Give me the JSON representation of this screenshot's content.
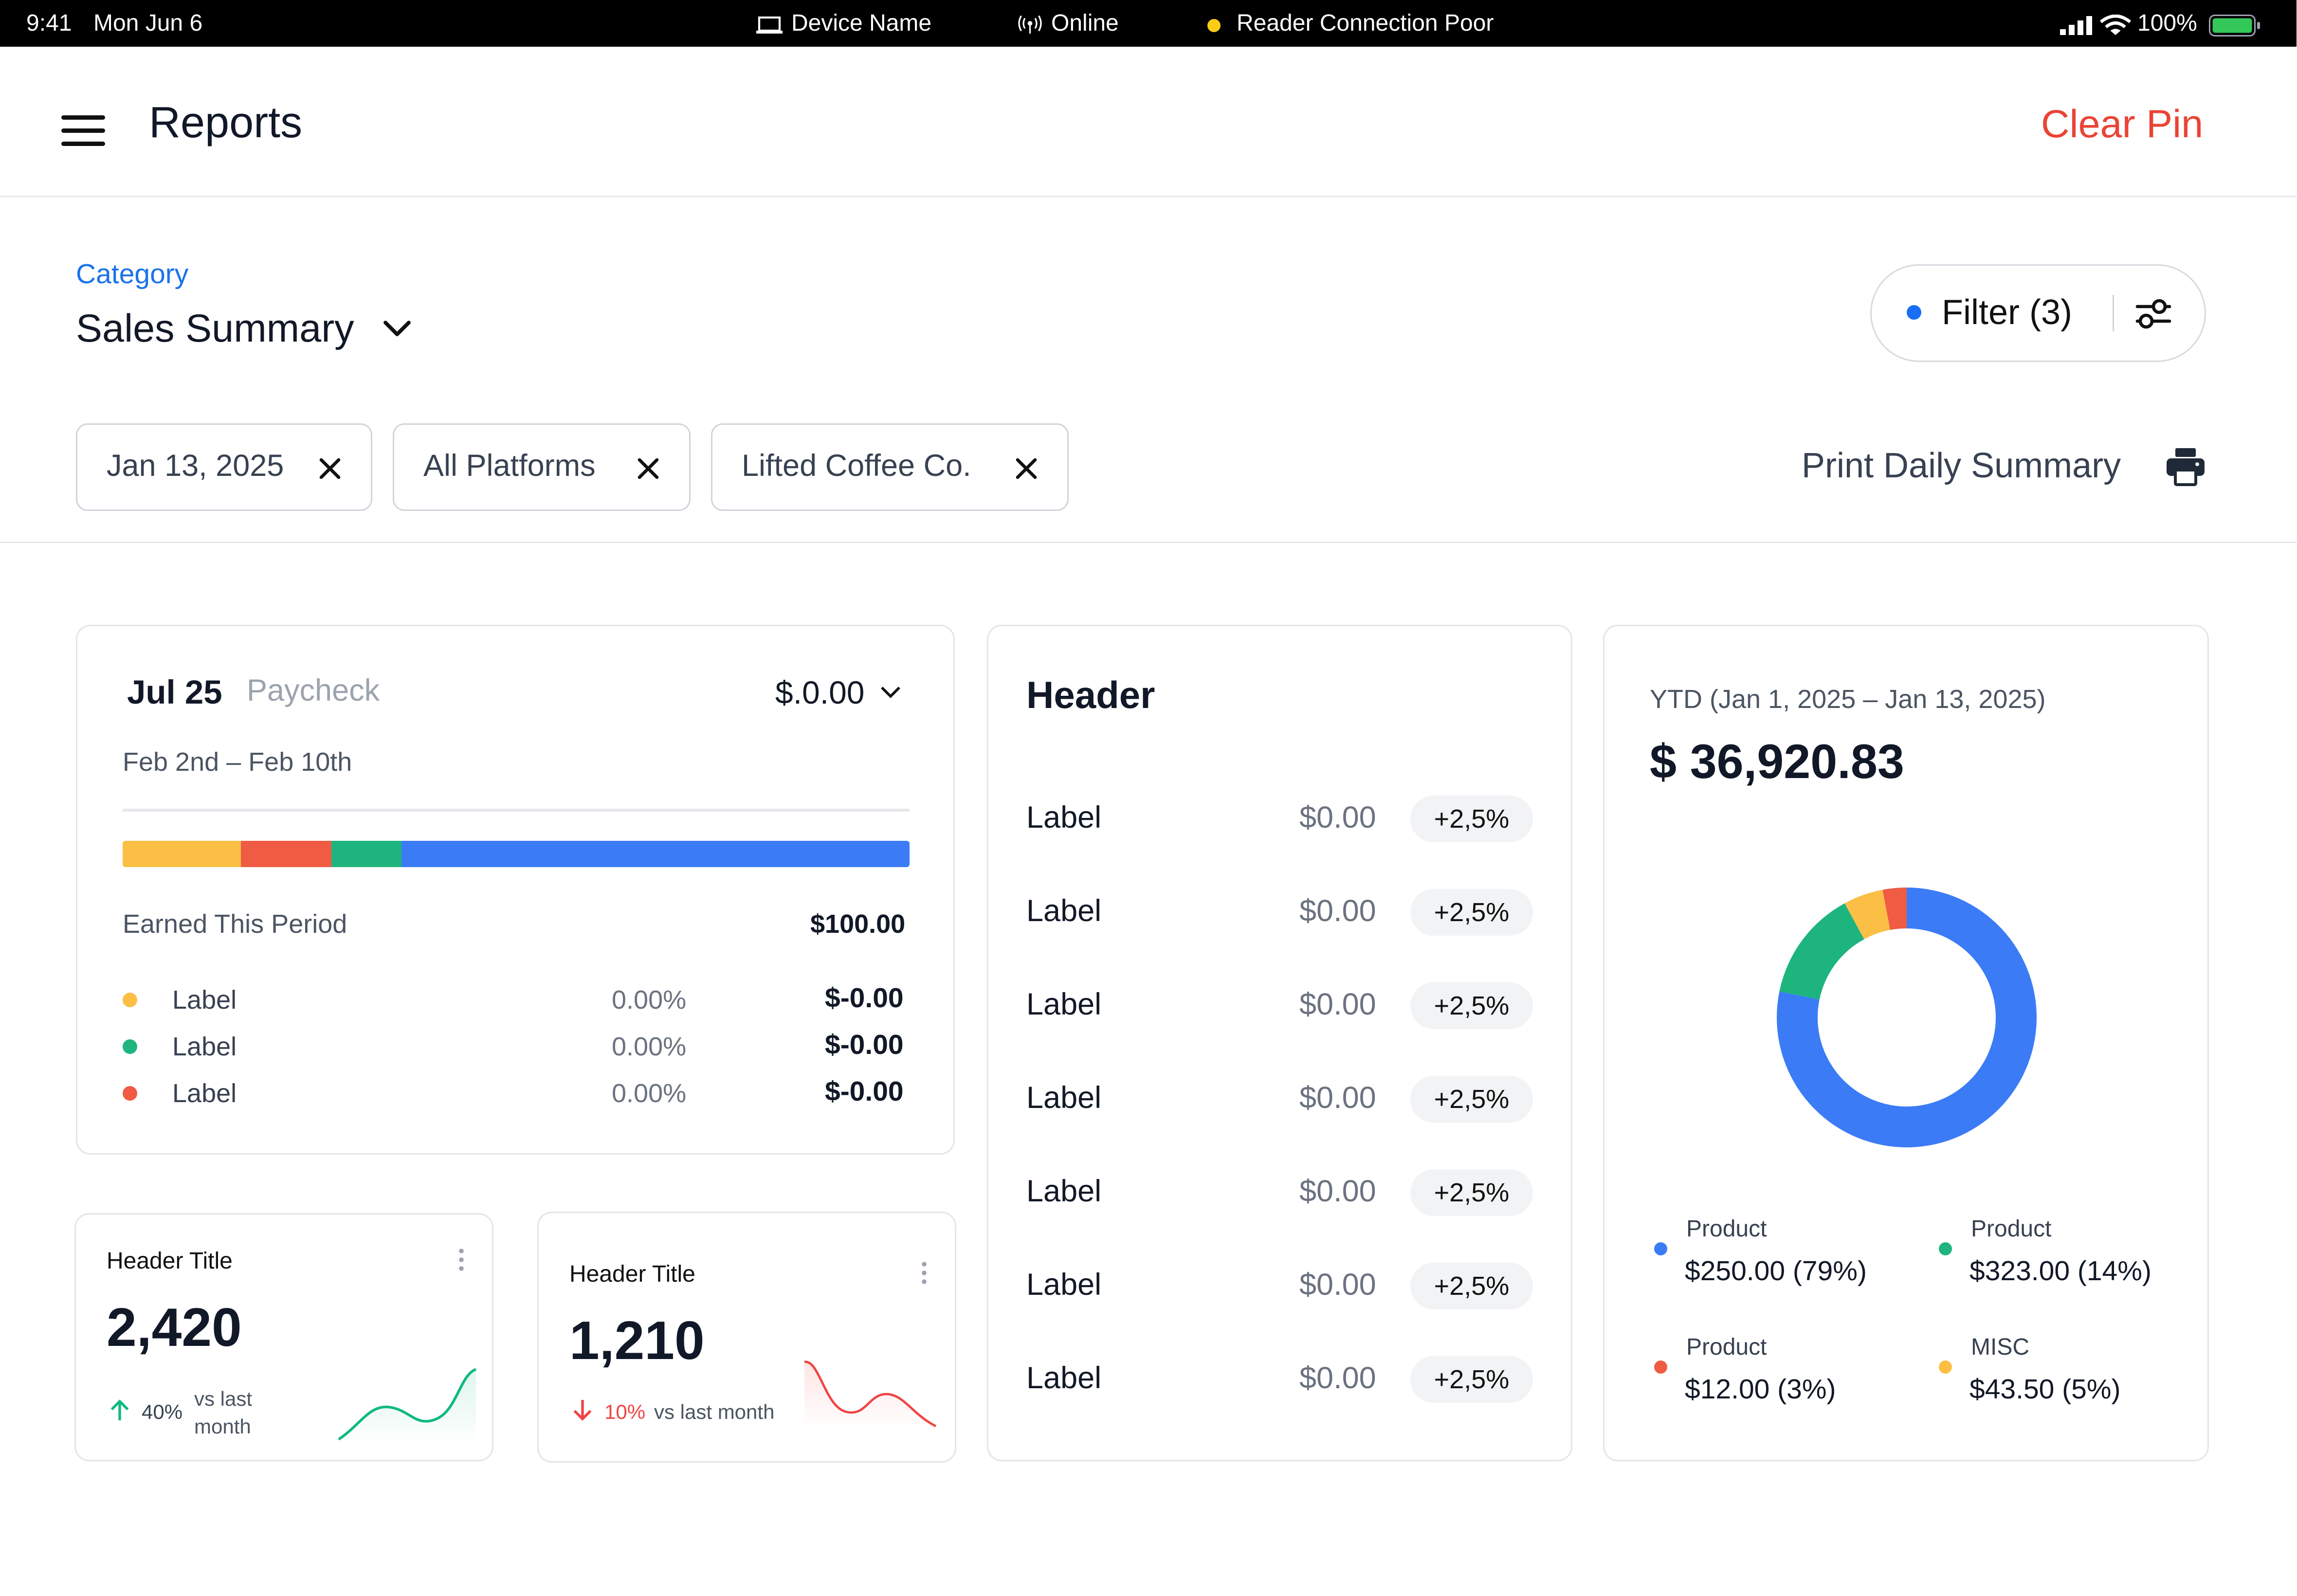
{
  "status_bar": {
    "time": "9:41",
    "date": "Mon Jun 6",
    "device": "Device Name",
    "network": "Online",
    "reader": "Reader Connection Poor",
    "battery": "100%"
  },
  "header": {
    "title": "Reports",
    "clear_pin": "Clear Pin"
  },
  "category": {
    "label": "Category",
    "value": "Sales Summary"
  },
  "filter_button": {
    "label": "Filter (3)"
  },
  "chips": [
    "Jan 13, 2025",
    "All Platforms",
    "Lifted Coffee Co."
  ],
  "print_label": "Print Daily Summary",
  "paycheck_card": {
    "date": "Jul 25",
    "type": "Paycheck",
    "amount": "$.0.00",
    "period": "Feb 2nd – Feb 10th",
    "earned_label": "Earned This Period",
    "earned_value": "$100.00",
    "bar": [
      {
        "color": "#fbbf45",
        "share": 0.15
      },
      {
        "color": "#ef5b43",
        "share": 0.115
      },
      {
        "color": "#1eb47e",
        "share": 0.09
      },
      {
        "color": "#3b7cf6",
        "share": 0.645
      }
    ],
    "rows": [
      {
        "color": "#fbbf45",
        "label": "Label",
        "pct": "0.00%",
        "value": "$-0.00"
      },
      {
        "color": "#1eb47e",
        "label": "Label",
        "pct": "0.00%",
        "value": "$-0.00"
      },
      {
        "color": "#ef5b43",
        "label": "Label",
        "pct": "0.00%",
        "value": "$-0.00"
      }
    ]
  },
  "stat_cards": [
    {
      "title": "Header Title",
      "value": "2,420",
      "change": "40%",
      "trend": "up",
      "compare": "vs last month",
      "color": "#10b981"
    },
    {
      "title": "Header Title",
      "value": "1,210",
      "change": "10%",
      "trend": "down",
      "compare": "vs last month",
      "color": "#ef4444"
    }
  ],
  "list_card": {
    "title": "Header",
    "rows": [
      {
        "label": "Label",
        "value": "$0.00",
        "badge": "+2,5%"
      },
      {
        "label": "Label",
        "value": "$0.00",
        "badge": "+2,5%"
      },
      {
        "label": "Label",
        "value": "$0.00",
        "badge": "+2,5%"
      },
      {
        "label": "Label",
        "value": "$0.00",
        "badge": "+2,5%"
      },
      {
        "label": "Label",
        "value": "$0.00",
        "badge": "+2,5%"
      },
      {
        "label": "Label",
        "value": "$0.00",
        "badge": "+2,5%"
      },
      {
        "label": "Label",
        "value": "$0.00",
        "badge": "+2,5%"
      }
    ]
  },
  "ytd_card": {
    "range": "YTD (Jan 1, 2025 – Jan 13, 2025)",
    "total": "$ 36,920.83",
    "legend": [
      {
        "name": "Product",
        "value": "$250.00 (79%)",
        "color": "#3b7cf6"
      },
      {
        "name": "Product",
        "value": "$323.00 (14%)",
        "color": "#1eb47e"
      },
      {
        "name": "Product",
        "value": "$12.00 (3%)",
        "color": "#ef5b43"
      },
      {
        "name": "MISC",
        "value": "$43.50 (5%)",
        "color": "#fbbf45"
      }
    ]
  },
  "chart_data": {
    "type": "pie",
    "categories": [
      "Product",
      "Product",
      "Product",
      "MISC"
    ],
    "values": [
      79,
      14,
      3,
      5
    ],
    "colors": [
      "#3b7cf6",
      "#1eb47e",
      "#ef5b43",
      "#fbbf45"
    ],
    "title": "",
    "donut": true
  }
}
